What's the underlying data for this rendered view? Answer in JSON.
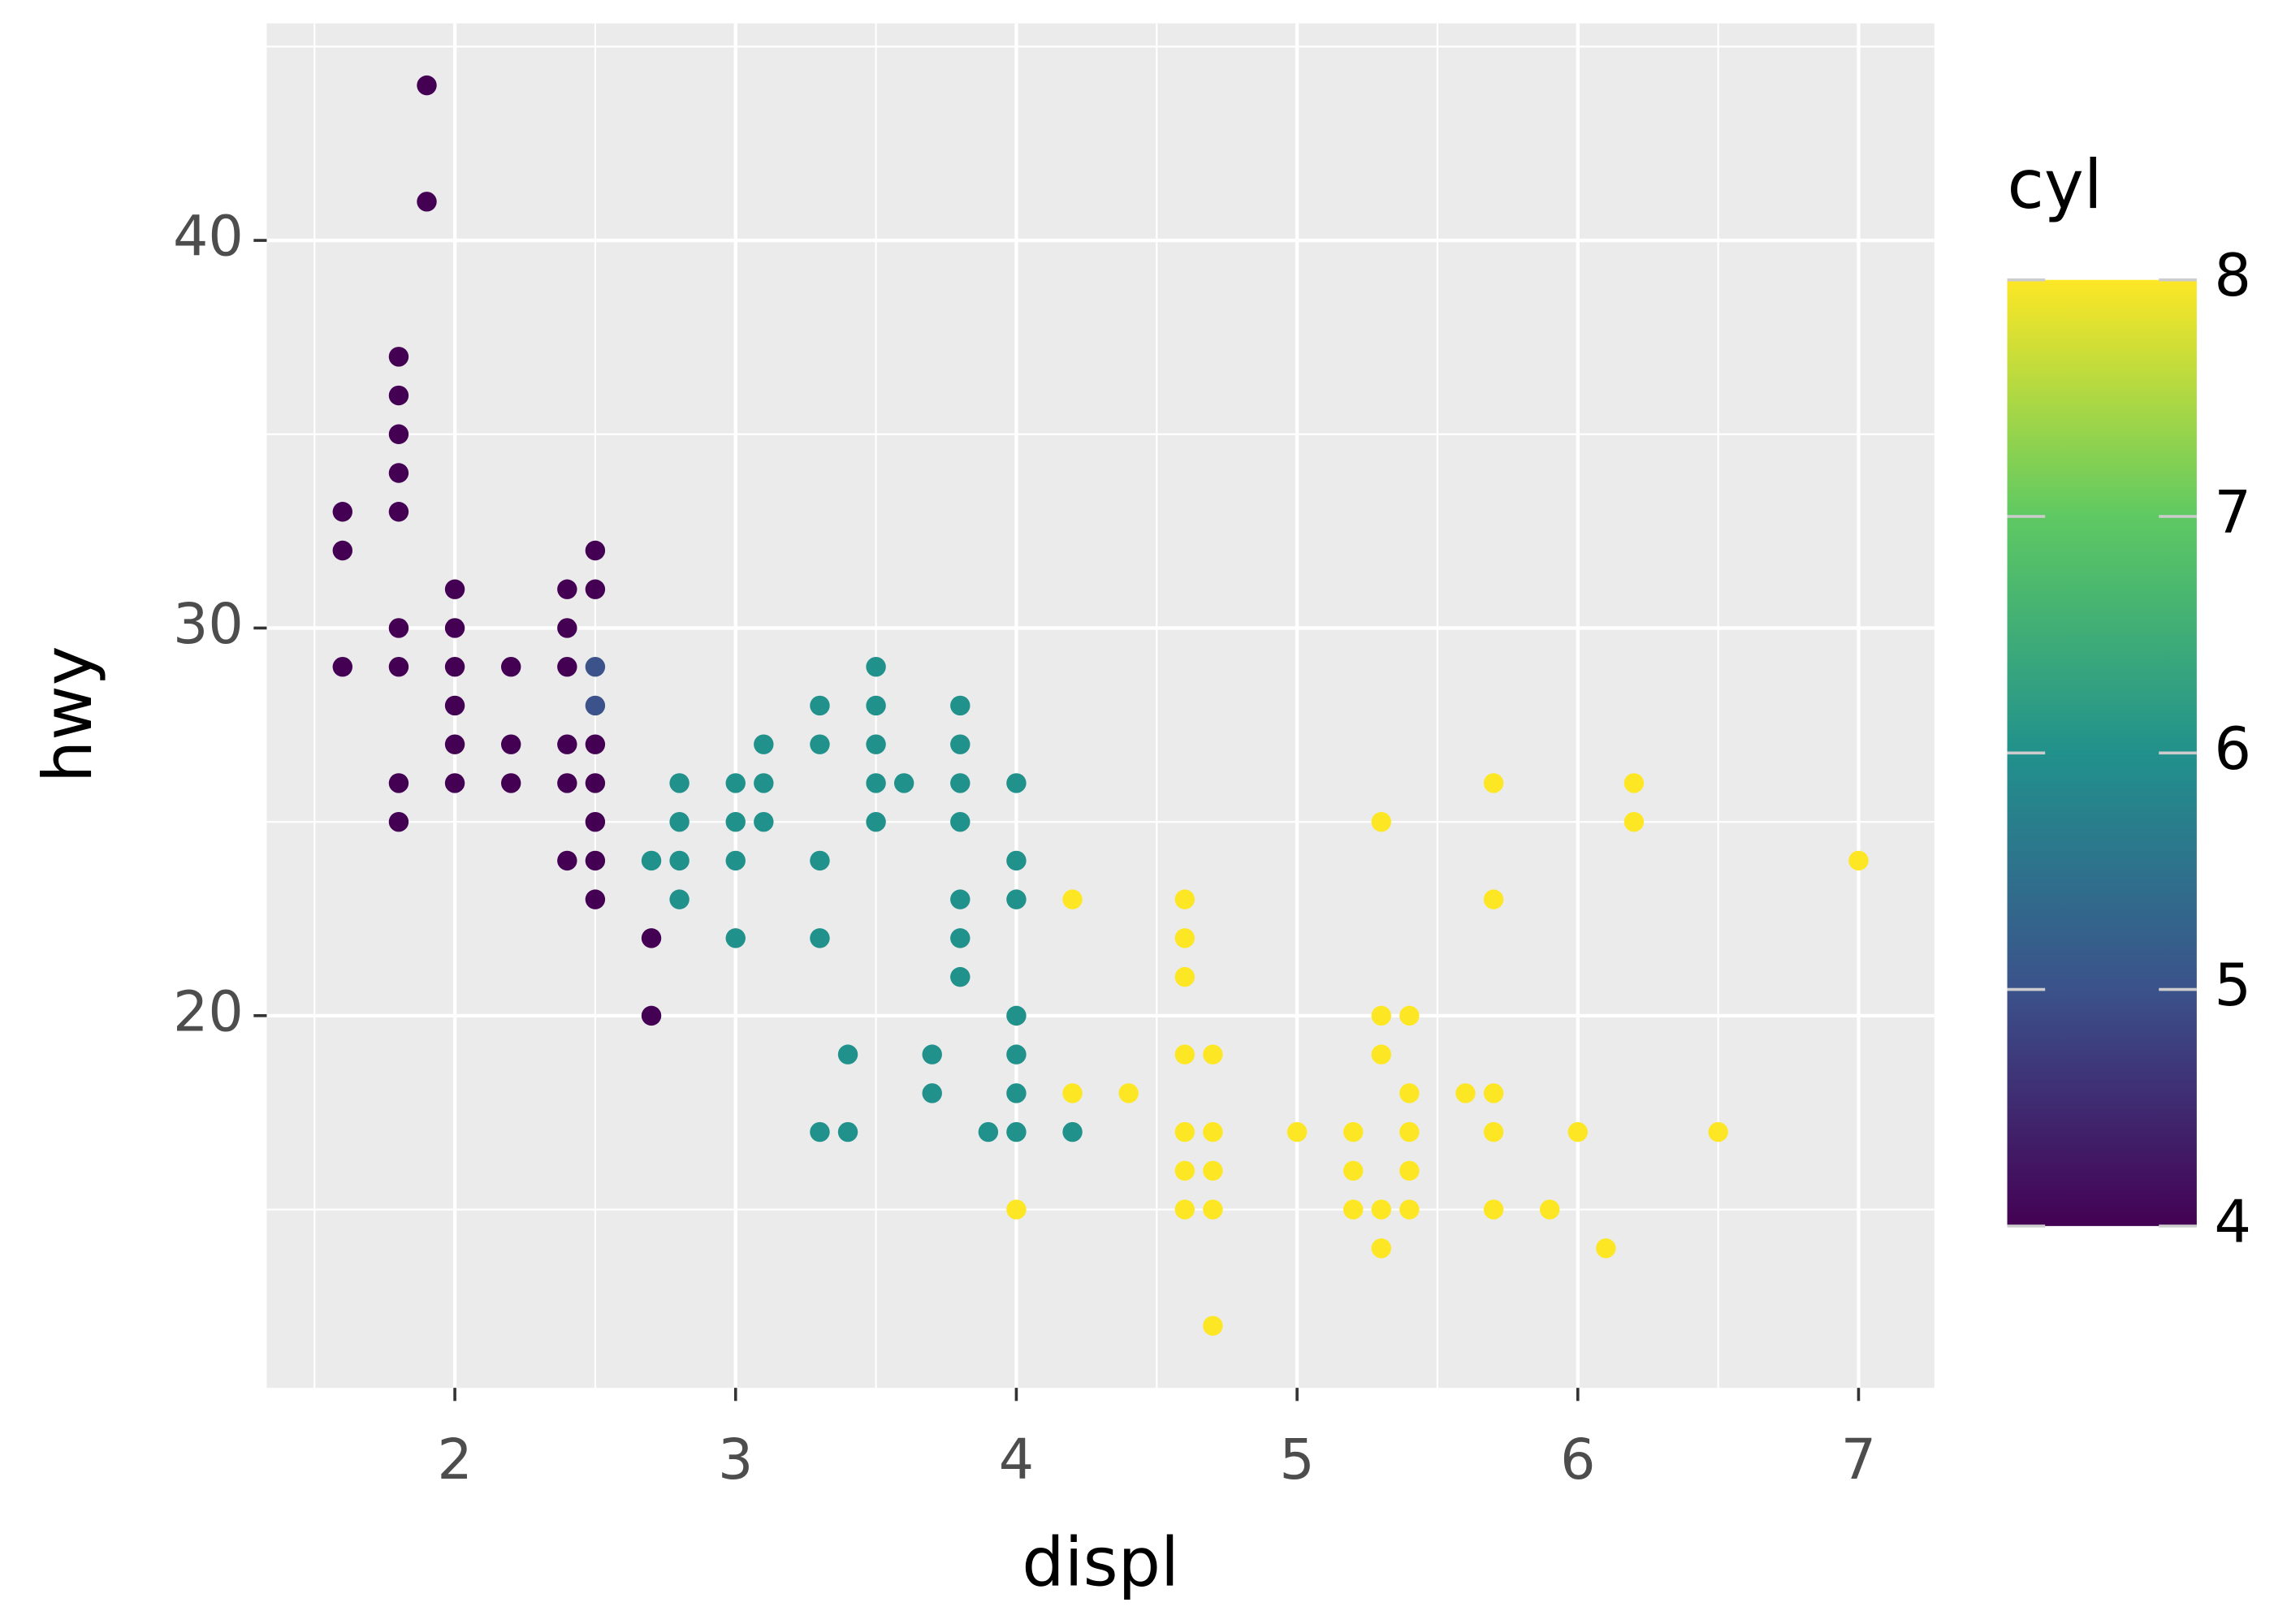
{
  "chart_data": {
    "type": "scatter",
    "x_label": "displ",
    "y_label": "hwy",
    "legend_title": "cyl",
    "xlim": [
      1.33,
      7.27
    ],
    "ylim": [
      10.4,
      45.6
    ],
    "xticks": [
      2,
      3,
      4,
      5,
      6,
      7
    ],
    "yticks": [
      20,
      30,
      40
    ],
    "x_minor_ticks": [
      1.5,
      2.5,
      3.5,
      4.5,
      5.5,
      6.5
    ],
    "y_minor_ticks": [
      15,
      25,
      35,
      45
    ],
    "grid": true,
    "clim": [
      4,
      8
    ],
    "cticks": [
      4,
      5,
      6,
      7,
      8
    ],
    "colorscale": [
      "#440154",
      "#3b528b",
      "#21918c",
      "#5ec962",
      "#fde725"
    ],
    "x": [
      1.6,
      1.6,
      1.6,
      1.8,
      1.8,
      1.8,
      1.8,
      1.8,
      1.8,
      1.8,
      1.8,
      1.8,
      1.9,
      1.9,
      2,
      2,
      2,
      2,
      2,
      2,
      2.2,
      2.2,
      2.2,
      2.4,
      2.4,
      2.4,
      2.4,
      2.4,
      2.4,
      2.5,
      2.5,
      2.5,
      2.5,
      2.5,
      2.5,
      2.5,
      2.5,
      2.5,
      2.7,
      2.7,
      2.7,
      2.8,
      2.8,
      2.8,
      2.8,
      3,
      3,
      3,
      3,
      3.1,
      3.1,
      3.1,
      3.3,
      3.3,
      3.3,
      3.3,
      3.3,
      3.4,
      3.4,
      3.5,
      3.5,
      3.5,
      3.5,
      3.5,
      3.6,
      3.7,
      3.7,
      3.8,
      3.8,
      3.8,
      3.8,
      3.8,
      3.8,
      3.8,
      3.9,
      4,
      4,
      4,
      4,
      4,
      4,
      4,
      4.2,
      4,
      4.2,
      4.2,
      4.4,
      4.6,
      4.6,
      4.6,
      4.6,
      4.6,
      4.6,
      4.6,
      4.7,
      4.7,
      4.7,
      4.7,
      4.7,
      5,
      5.2,
      5.2,
      5.2,
      5.3,
      5.3,
      5.3,
      5.3,
      5.3,
      5.4,
      5.4,
      5.4,
      5.4,
      5.4,
      5.6,
      5.7,
      5.7,
      5.7,
      5.7,
      5.7,
      5.9,
      6,
      6.1,
      6.2,
      6.2,
      6.5,
      7
    ],
    "y": [
      33,
      32,
      29,
      37,
      36,
      35,
      34,
      33,
      30,
      29,
      26,
      25,
      44,
      41,
      31,
      30,
      29,
      28,
      27,
      26,
      29,
      27,
      26,
      31,
      30,
      29,
      27,
      26,
      24,
      32,
      31,
      27,
      26,
      25,
      24,
      23,
      29,
      28,
      22,
      20,
      24,
      26,
      25,
      24,
      23,
      26,
      25,
      24,
      22,
      27,
      26,
      25,
      28,
      27,
      24,
      22,
      17,
      19,
      17,
      29,
      28,
      27,
      26,
      25,
      26,
      19,
      18,
      28,
      27,
      26,
      25,
      23,
      22,
      21,
      17,
      26,
      24,
      23,
      20,
      19,
      18,
      17,
      17,
      15,
      23,
      18,
      18,
      23,
      22,
      21,
      19,
      17,
      16,
      15,
      19,
      17,
      16,
      15,
      12,
      17,
      17,
      16,
      15,
      25,
      20,
      19,
      15,
      14,
      20,
      18,
      17,
      16,
      15,
      18,
      26,
      23,
      18,
      17,
      15,
      15,
      17,
      14,
      26,
      25,
      17,
      24
    ],
    "cyl": [
      4,
      4,
      4,
      4,
      4,
      4,
      4,
      4,
      4,
      4,
      4,
      4,
      4,
      4,
      4,
      4,
      4,
      4,
      4,
      4,
      4,
      4,
      4,
      4,
      4,
      4,
      4,
      4,
      4,
      4,
      4,
      4,
      4,
      4,
      4,
      4,
      5,
      5,
      4,
      4,
      6,
      6,
      6,
      6,
      6,
      6,
      6,
      6,
      6,
      6,
      6,
      6,
      6,
      6,
      6,
      6,
      6,
      6,
      6,
      6,
      6,
      6,
      6,
      6,
      6,
      6,
      6,
      6,
      6,
      6,
      6,
      6,
      6,
      6,
      6,
      6,
      6,
      6,
      6,
      6,
      6,
      6,
      6,
      8,
      8,
      8,
      8,
      8,
      8,
      8,
      8,
      8,
      8,
      8,
      8,
      8,
      8,
      8,
      8,
      8,
      8,
      8,
      8,
      8,
      8,
      8,
      8,
      8,
      8,
      8,
      8,
      8,
      8,
      8,
      8,
      8,
      8,
      8,
      8,
      8,
      8,
      8,
      8,
      8,
      8,
      8
    ]
  }
}
